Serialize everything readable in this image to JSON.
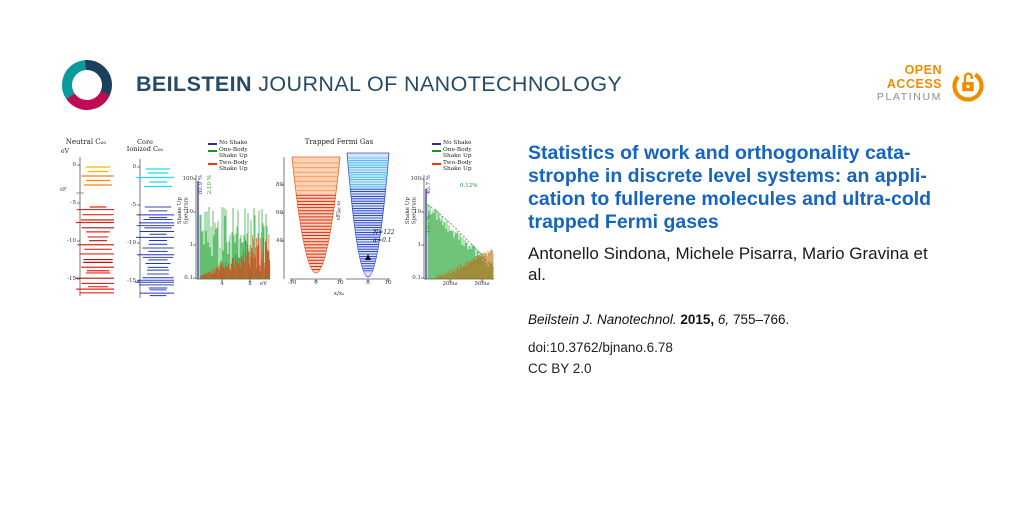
{
  "theme": {
    "title_blue": "#1565c0",
    "brand_navy": "#274b66",
    "oa_orange": "#f08c00",
    "platinum_gray": "#8c8c8c"
  },
  "header": {
    "brand": {
      "bold": "BEILSTEIN",
      "rest": " JOURNAL OF NANOTECHNOLOGY"
    },
    "open_access": {
      "open": "OPEN",
      "access": "ACCESS",
      "platinum": "PLATINUM"
    }
  },
  "article": {
    "title_lines": [
      "Statistics of work and orthogonality cata-",
      "strophe in discrete level systems: an appli-",
      "cation to fullerene molecules and ultra-cold",
      "trapped Fermi gases"
    ],
    "authors_lines": [
      "Antonello Sindona, Michele Pisarra, Mario Gravina et",
      "al."
    ],
    "citation": {
      "journal": "Beilstein J. Nanotechnol.",
      "year": "2015,",
      "volume": "6,",
      "pages": "755–766."
    },
    "doi": "doi:10.3762/bjnano.6.78",
    "license": "CC BY 2.0"
  },
  "figure": {
    "colors": {
      "no_shake": "#26318e",
      "one_body": "#0f9d20",
      "two_body": "#e03a10",
      "upper_neutral": "#ff8200",
      "lower_neutral": "#e02818",
      "upper_ion": "#20dcf0",
      "lower_ion": "#2031d0",
      "trap_left_fill": "#fcd2b8",
      "trap_left_top": "#ff9d50",
      "trap_left_line": "#e02818",
      "trap_right_fill": "#d4e2fa",
      "trap_right_top": "#38c0e8",
      "trap_right_line": "#2233c8"
    },
    "legend": [
      {
        "label": "No Shake",
        "color": "#26318e"
      },
      {
        "label": "One-Body\nShake Up",
        "color": "#0f9d20"
      },
      {
        "label": "Two-Body\nShake Up",
        "color": "#e03a10"
      }
    ],
    "spectrum_ylabel": "Shake Up\nSpectrum",
    "panel_neutral": {
      "title": "Neutral C₆₀",
      "unit": "eV",
      "y_ticks": [
        "0",
        "-5",
        "-10",
        "-15"
      ],
      "fermi": "εF"
    },
    "panel_ionized": {
      "title": "Core\nIonized C₆₀",
      "y_ticks": [
        "0",
        "-5",
        "-10",
        "-15"
      ]
    },
    "panel_molecule_spectrum": {
      "weights": [
        {
          "text": "80.9 %",
          "color": "#26318e"
        },
        {
          "text": "2.10 %",
          "color": "#0f9d20"
        }
      ],
      "y_ticks": [
        "100",
        "10",
        "1",
        "0.1"
      ],
      "x_ticks": [
        "4",
        "8"
      ],
      "x_unit": "eV"
    },
    "panel_trap": {
      "title": "Trapped Fermi Gas",
      "y_label": "εF/ℏω",
      "y_ticks": [
        "80",
        "60",
        "40"
      ],
      "x_ticks_left": [
        "-10",
        "0",
        "10"
      ],
      "x_ticks_right": [
        "0",
        "10"
      ],
      "x_label": "x/x₀",
      "params": [
        "N=122",
        "α=0.1"
      ]
    },
    "panel_gas_spectrum": {
      "weights": [
        {
          "text": "40.7 %",
          "color": "#26318e"
        },
        {
          "text": "3.07 %",
          "color": "#0f9d20"
        },
        {
          "text": "0.12%",
          "color": "#0f9d20"
        }
      ],
      "y_ticks": [
        "100",
        "10",
        "1",
        "0.1"
      ],
      "x_ticks": [
        "20ℏω",
        "50ℏω"
      ]
    }
  }
}
